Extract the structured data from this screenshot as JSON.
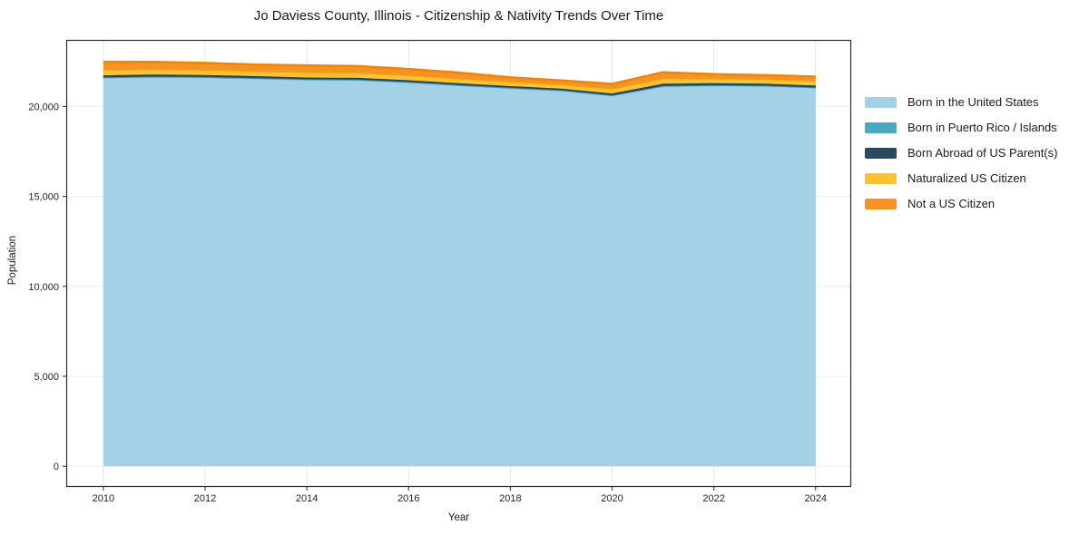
{
  "figure": {
    "title": "Jo Daviess County, Illinois - Citizenship & Nativity Trends Over Time",
    "xlabel": "Year",
    "ylabel": "Population"
  },
  "chart_data": {
    "type": "area",
    "stacked": true,
    "title": "Jo Daviess County, Illinois - Citizenship & Nativity Trends Over Time",
    "xlabel": "Year",
    "ylabel": "Population",
    "grid": true,
    "legend_position": "right-outside",
    "x": [
      2010,
      2011,
      2012,
      2013,
      2014,
      2015,
      2016,
      2017,
      2018,
      2019,
      2020,
      2021,
      2022,
      2023,
      2024
    ],
    "x_tick_values": [
      2010,
      2012,
      2014,
      2016,
      2018,
      2020,
      2022,
      2024
    ],
    "x_tick_labels": [
      "2010",
      "2012",
      "2014",
      "2016",
      "2018",
      "2020",
      "2022",
      "2024"
    ],
    "y_tick_values": [
      0,
      5000,
      10000,
      15000,
      20000
    ],
    "y_tick_labels": [
      "0",
      "5,000",
      "10,000",
      "15,000",
      "20,000"
    ],
    "xlim": [
      2009.27,
      2024.7
    ],
    "ylim": [
      -1150,
      23700
    ],
    "series": [
      {
        "id": "born-us",
        "name": "Born in the United States",
        "color": "#a5d1e6",
        "line_color": "#8fc2da",
        "values": [
          21580,
          21620,
          21600,
          21540,
          21470,
          21450,
          21320,
          21150,
          21000,
          20860,
          20580,
          21100,
          21140,
          21120,
          21020
        ]
      },
      {
        "id": "born-pr-islands",
        "name": "Born in Puerto Rico / Islands",
        "color": "#4aa9c2",
        "line_color": "#3a93ab",
        "values": [
          40,
          40,
          40,
          40,
          40,
          40,
          40,
          40,
          40,
          40,
          40,
          45,
          45,
          40,
          40
        ]
      },
      {
        "id": "born-abroad",
        "name": "Born Abroad of US Parent(s)",
        "color": "#284a5c",
        "line_color": "#1e3a49",
        "values": [
          110,
          110,
          105,
          105,
          100,
          100,
          95,
          95,
          90,
          90,
          100,
          115,
          110,
          105,
          100
        ]
      },
      {
        "id": "naturalized",
        "name": "Naturalized US Citizen",
        "color": "#fdc132",
        "line_color": "#efad15",
        "values": [
          300,
          290,
          280,
          270,
          285,
          275,
          265,
          255,
          230,
          220,
          255,
          290,
          250,
          240,
          250
        ]
      },
      {
        "id": "not-citizen",
        "name": "Not a US Citizen",
        "color": "#f79421",
        "line_color": "#e8860f",
        "values": [
          450,
          420,
          395,
          375,
          390,
          380,
          360,
          340,
          255,
          235,
          280,
          350,
          250,
          235,
          250
        ]
      }
    ]
  },
  "style": {
    "spine_color": "#2b2b2b",
    "grid_color_v": "#e7e7e7",
    "grid_color_h": "#ededed",
    "tick_color": "#2b2b2b"
  }
}
